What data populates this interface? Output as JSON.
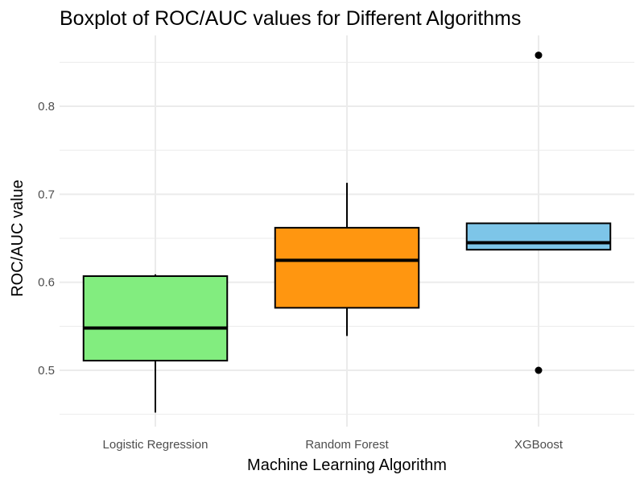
{
  "chart_data": {
    "type": "boxplot",
    "title": "Boxplot of ROC/AUC values for Different Algorithms",
    "xlabel": "Machine Learning Algorithm",
    "ylabel": "ROC/AUC value",
    "ylim": [
      0.44,
      0.87
    ],
    "yticks": [
      0.5,
      0.6,
      0.7,
      0.8
    ],
    "ytick_labels": [
      "0.5",
      "0.6",
      "0.7",
      "0.8"
    ],
    "grid": true,
    "legend": "none",
    "categories": [
      "Logistic Regression",
      "Random Forest",
      "XGBoost"
    ],
    "boxes": [
      {
        "category": "Logistic Regression",
        "whisker_low": 0.452,
        "q1": 0.511,
        "median": 0.548,
        "q3": 0.607,
        "whisker_high": 0.609,
        "outliers": [],
        "color": "#82ed7f"
      },
      {
        "category": "Random Forest",
        "whisker_low": 0.539,
        "q1": 0.571,
        "median": 0.625,
        "q3": 0.662,
        "whisker_high": 0.713,
        "outliers": [],
        "color": "#ff9610"
      },
      {
        "category": "XGBoost",
        "whisker_low": 0.637,
        "q1": 0.637,
        "median": 0.645,
        "q3": 0.667,
        "whisker_high": 0.667,
        "outliers": [
          0.858,
          0.5
        ],
        "color": "#7dc5e8"
      }
    ]
  }
}
